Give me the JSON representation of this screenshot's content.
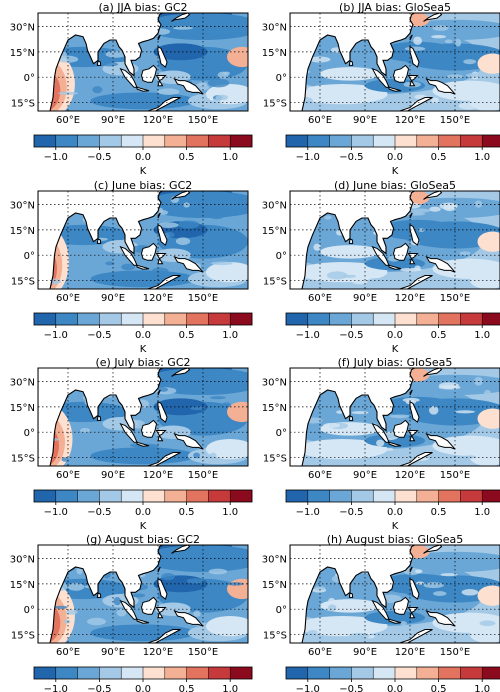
{
  "figure": {
    "colorbar_label": "K",
    "colorbar_levels": [
      "#2166ac",
      "#3d87c4",
      "#6aa7d6",
      "#a3c9e6",
      "#d5e6f4",
      "#fde0d0",
      "#f4b094",
      "#e2735f",
      "#c63a3c",
      "#8b0a1e"
    ],
    "colorbar_ticks": [
      "−1.0",
      "−0.5",
      "0.0",
      "0.5",
      "1.0"
    ],
    "colorbar_tick_values": [
      -1.0,
      -0.5,
      0.0,
      0.5,
      1.0
    ],
    "lat_ticks": [
      "30°N",
      "15°N",
      "0°",
      "15°S"
    ],
    "lon_ticks": [
      "60°E",
      "90°E",
      "120°E",
      "150°E"
    ]
  },
  "chart_data": [
    {
      "type": "heatmap",
      "id": "a",
      "title": "(a) JJA bias: GC2",
      "model": "GC2",
      "period": "JJA",
      "xlabel": "",
      "ylabel": "",
      "colorbar": {
        "label": "K",
        "range": [
          -1.25,
          1.25
        ],
        "step": 0.25
      },
      "lon_ticks": [
        60,
        90,
        120,
        150
      ],
      "lat_ticks": [
        30,
        15,
        0,
        -15
      ],
      "grid": true
    },
    {
      "type": "heatmap",
      "id": "b",
      "title": "(b) JJA bias: GloSea5",
      "model": "GloSea5",
      "period": "JJA",
      "xlabel": "",
      "ylabel": "",
      "colorbar": {
        "label": "K",
        "range": [
          -1.25,
          1.25
        ],
        "step": 0.25
      },
      "lon_ticks": [
        60,
        90,
        120,
        150
      ],
      "lat_ticks": [
        30,
        15,
        0,
        -15
      ],
      "grid": true
    },
    {
      "type": "heatmap",
      "id": "c",
      "title": "(c) June bias: GC2",
      "model": "GC2",
      "period": "June",
      "xlabel": "",
      "ylabel": "",
      "colorbar": {
        "label": "K",
        "range": [
          -1.25,
          1.25
        ],
        "step": 0.25
      },
      "lon_ticks": [
        60,
        90,
        120,
        150
      ],
      "lat_ticks": [
        30,
        15,
        0,
        -15
      ],
      "grid": true
    },
    {
      "type": "heatmap",
      "id": "d",
      "title": "(d) June bias: GloSea5",
      "model": "GloSea5",
      "period": "June",
      "xlabel": "",
      "ylabel": "",
      "colorbar": {
        "label": "K",
        "range": [
          -1.25,
          1.25
        ],
        "step": 0.25
      },
      "lon_ticks": [
        60,
        90,
        120,
        150
      ],
      "lat_ticks": [
        30,
        15,
        0,
        -15
      ],
      "grid": true
    },
    {
      "type": "heatmap",
      "id": "e",
      "title": "(e) July bias: GC2",
      "model": "GC2",
      "period": "July",
      "xlabel": "",
      "ylabel": "",
      "colorbar": {
        "label": "K",
        "range": [
          -1.25,
          1.25
        ],
        "step": 0.25
      },
      "lon_ticks": [
        60,
        90,
        120,
        150
      ],
      "lat_ticks": [
        30,
        15,
        0,
        -15
      ],
      "grid": true
    },
    {
      "type": "heatmap",
      "id": "f",
      "title": "(f) July bias: GloSea5",
      "model": "GloSea5",
      "period": "July",
      "xlabel": "",
      "ylabel": "",
      "colorbar": {
        "label": "K",
        "range": [
          -1.25,
          1.25
        ],
        "step": 0.25
      },
      "lon_ticks": [
        60,
        90,
        120,
        150
      ],
      "lat_ticks": [
        30,
        15,
        0,
        -15
      ],
      "grid": true
    },
    {
      "type": "heatmap",
      "id": "g",
      "title": "(g) August bias: GC2",
      "model": "GC2",
      "period": "August",
      "xlabel": "",
      "ylabel": "",
      "colorbar": {
        "label": "K",
        "range": [
          -1.25,
          1.25
        ],
        "step": 0.25
      },
      "lon_ticks": [
        60,
        90,
        120,
        150
      ],
      "lat_ticks": [
        30,
        15,
        0,
        -15
      ],
      "grid": true
    },
    {
      "type": "heatmap",
      "id": "h",
      "title": "(h) August bias: GloSea5",
      "model": "GloSea5",
      "period": "August",
      "xlabel": "",
      "ylabel": "",
      "colorbar": {
        "label": "K",
        "range": [
          -1.25,
          1.25
        ],
        "step": 0.25
      },
      "lon_ticks": [
        60,
        90,
        120,
        150
      ],
      "lat_ticks": [
        30,
        15,
        0,
        -15
      ],
      "grid": true
    }
  ]
}
